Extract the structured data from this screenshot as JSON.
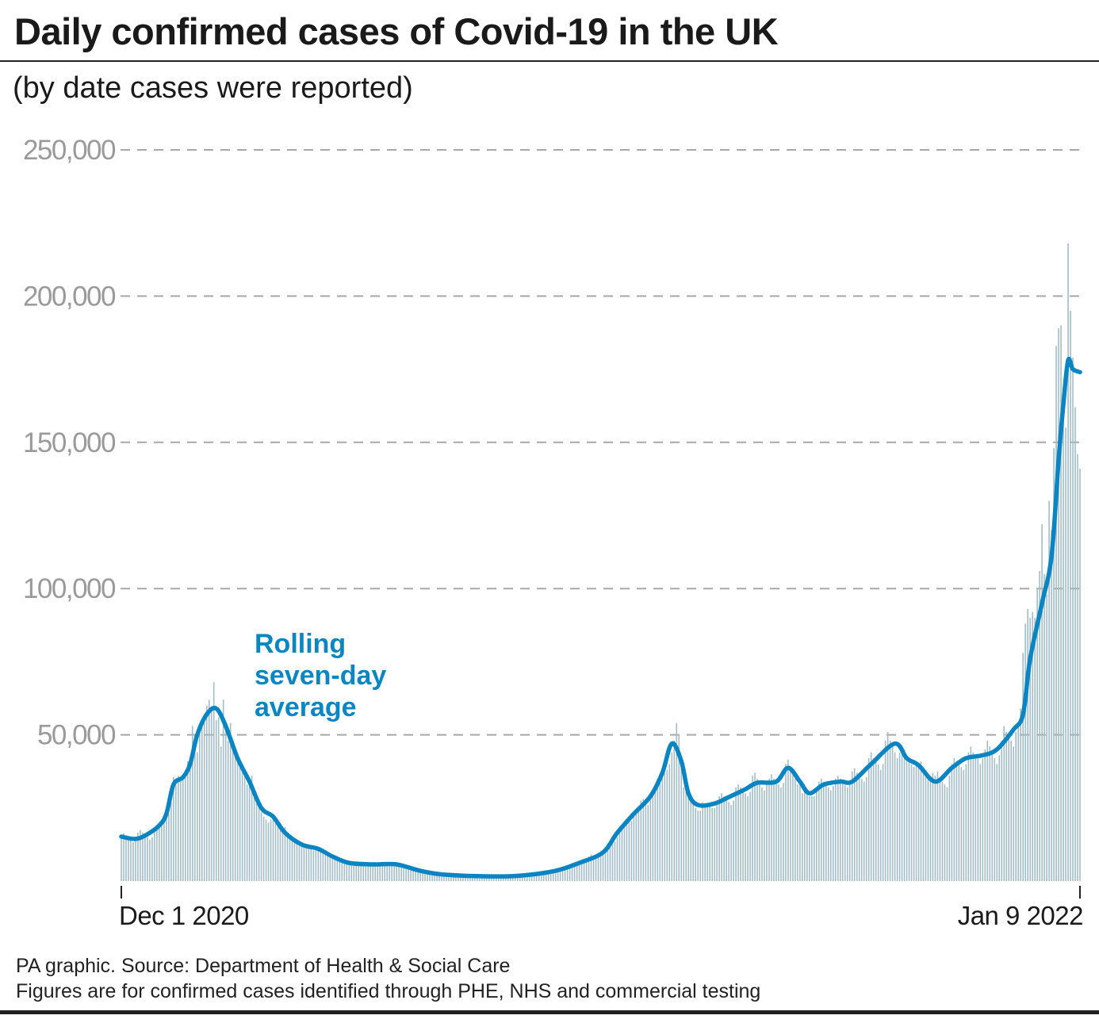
{
  "chart_data": {
    "type": "bar",
    "title": "Daily confirmed cases of Covid-19 in the UK",
    "subtitle": "(by date cases were reported)",
    "xlabel": "",
    "ylabel": "",
    "ylim": [
      0,
      250000
    ],
    "yticks": [
      50000,
      100000,
      150000,
      200000,
      250000
    ],
    "ytick_labels": [
      "50,000",
      "100,000",
      "150,000",
      "200,000",
      "250,000"
    ],
    "xtick_labels": [
      {
        "date": "2020-12-01",
        "label": "Dec 1 2020"
      },
      {
        "date": "2022-01-09",
        "label": "Jan 9  2022"
      }
    ],
    "grid": "horizontal dashed",
    "colors": {
      "bars": "#a3bcc6",
      "line": "#0a85c2",
      "grid": "#a8a8a8"
    },
    "daily_start_date": "2020-12-01",
    "daily_cases": [
      15500,
      16300,
      15600,
      14800,
      14100,
      13300,
      14100,
      16600,
      17400,
      16600,
      15800,
      15000,
      14200,
      15000,
      17000,
      18000,
      19500,
      20000,
      21000,
      21500,
      23000,
      27000,
      35500,
      33000,
      36000,
      35000,
      34500,
      38000,
      41000,
      39000,
      53000,
      50000,
      44000,
      53000,
      54000,
      57000,
      60000,
      62000,
      58000,
      68000,
      55000,
      56000,
      46000,
      62000,
      52000,
      48000,
      54000,
      46000,
      45000,
      42000,
      40000,
      38000,
      37000,
      33000,
      33000,
      36000,
      30000,
      28000,
      25500,
      23500,
      22000,
      21000,
      20000,
      21000,
      21500,
      20000,
      19000,
      18500,
      17500,
      18500,
      15500,
      15000,
      14500,
      13500,
      13000,
      12000,
      12500,
      12000,
      12500,
      11500,
      11000,
      10500,
      10500,
      11500,
      10000,
      9500,
      9200,
      8700,
      8500,
      8000,
      8300,
      7400,
      6900,
      6600,
      6400,
      6000,
      5800,
      6100,
      6100,
      6000,
      5900,
      5700,
      5500,
      5600,
      5800,
      6000,
      6100,
      5800,
      5600,
      5400,
      5300,
      5700,
      5900,
      6000,
      5800,
      5600,
      5500,
      5400,
      5600,
      4800,
      4500,
      4300,
      4100,
      3900,
      3800,
      4000,
      3400,
      3200,
      3000,
      2900,
      2800,
      2700,
      2900,
      2500,
      2400,
      2300,
      2100,
      2000,
      1900,
      2100,
      2200,
      2100,
      2000,
      1900,
      1900,
      1800,
      2000,
      2000,
      1900,
      1800,
      1700,
      1700,
      1600,
      1800,
      1800,
      1700,
      1600,
      1500,
      1500,
      1400,
      1600,
      1900,
      1900,
      1800,
      1700,
      1700,
      1700,
      1900,
      2100,
      2200,
      2000,
      2000,
      1900,
      1900,
      2100,
      2700,
      3000,
      2900,
      2800,
      2700,
      2600,
      2900,
      3700,
      4200,
      4300,
      4000,
      3900,
      3800,
      4300,
      5500,
      6200,
      6400,
      6000,
      5800,
      5700,
      6400,
      7600,
      8400,
      9100,
      8800,
      8500,
      8300,
      9000,
      10500,
      11500,
      13000,
      13500,
      14000,
      13500,
      15000,
      16500,
      18000,
      20000,
      21000,
      22000,
      20500,
      22000,
      23500,
      25000,
      27500,
      28000,
      27000,
      26000,
      28500,
      31000,
      32500,
      35000,
      36000,
      35500,
      37000,
      38000,
      40000,
      44000,
      48000,
      54000,
      50000,
      40000,
      32000,
      34000,
      30000,
      28000,
      27000,
      25000,
      24000,
      24000,
      27000,
      26500,
      26000,
      25500,
      25000,
      25000,
      27000,
      29000,
      30000,
      29000,
      28000,
      27000,
      26000,
      27500,
      32000,
      33000,
      32000,
      31000,
      30000,
      29000,
      30500,
      36000,
      37000,
      35000,
      34000,
      32000,
      31000,
      33000,
      35000,
      36500,
      35000,
      34000,
      33000,
      32000,
      33500,
      40000,
      41500,
      38500,
      37000,
      35000,
      33000,
      34000,
      30000,
      31000,
      30000,
      29000,
      29000,
      29000,
      32000,
      34000,
      35000,
      34000,
      33000,
      32000,
      31000,
      32500,
      35000,
      36000,
      35000,
      34000,
      33000,
      32000,
      33000,
      37500,
      38500,
      37000,
      36000,
      35000,
      34000,
      35500,
      42000,
      44000,
      42000,
      41000,
      40000,
      38000,
      40000,
      48000,
      51000,
      48000,
      46000,
      44000,
      42000,
      44000,
      44000,
      45000,
      43000,
      42000,
      40000,
      39000,
      41000,
      40000,
      41000,
      39000,
      38000,
      36000,
      35000,
      37000,
      36000,
      37500,
      35000,
      34000,
      33000,
      32000,
      36000,
      40000,
      42000,
      41000,
      40000,
      39000,
      38000,
      40000,
      44000,
      46000,
      44000,
      43000,
      42000,
      40000,
      42000,
      45000,
      48000,
      46000,
      44000,
      42000,
      40000,
      43000,
      48000,
      53000,
      51000,
      50000,
      48000,
      46000,
      51000,
      54000,
      59000,
      78000,
      88000,
      93000,
      90000,
      92000,
      90000,
      100000,
      106000,
      122000,
      105000,
      98000,
      130000,
      120000,
      148000,
      183000,
      189000,
      190000,
      162000,
      155000,
      218000,
      195000,
      179000,
      162000,
      146000,
      141000
    ],
    "rolling_average": {
      "name": "Rolling seven-day average",
      "points": [
        [
          "2020-12-01",
          15200
        ],
        [
          "2020-12-07",
          14400
        ],
        [
          "2020-12-12",
          16000
        ],
        [
          "2020-12-17",
          19000
        ],
        [
          "2020-12-20",
          23000
        ],
        [
          "2020-12-23",
          33000
        ],
        [
          "2020-12-27",
          35500
        ],
        [
          "2020-12-30",
          40000
        ],
        [
          "2021-01-02",
          50000
        ],
        [
          "2021-01-06",
          57000
        ],
        [
          "2021-01-10",
          59000
        ],
        [
          "2021-01-14",
          53000
        ],
        [
          "2021-01-19",
          42000
        ],
        [
          "2021-01-24",
          34000
        ],
        [
          "2021-01-29",
          25000
        ],
        [
          "2021-02-03",
          22000
        ],
        [
          "2021-02-08",
          16500
        ],
        [
          "2021-02-15",
          12500
        ],
        [
          "2021-02-22",
          11000
        ],
        [
          "2021-02-28",
          8400
        ],
        [
          "2021-03-07",
          6200
        ],
        [
          "2021-03-17",
          5700
        ],
        [
          "2021-03-27",
          5700
        ],
        [
          "2021-04-06",
          3500
        ],
        [
          "2021-04-16",
          2200
        ],
        [
          "2021-05-06",
          1600
        ],
        [
          "2021-05-19",
          1900
        ],
        [
          "2021-06-02",
          3500
        ],
        [
          "2021-06-12",
          6200
        ],
        [
          "2021-06-22",
          9800
        ],
        [
          "2021-06-28",
          16500
        ],
        [
          "2021-07-05",
          23000
        ],
        [
          "2021-07-12",
          29000
        ],
        [
          "2021-07-17",
          37000
        ],
        [
          "2021-07-21",
          47000
        ],
        [
          "2021-07-25",
          41000
        ],
        [
          "2021-07-28",
          30000
        ],
        [
          "2021-08-01",
          26000
        ],
        [
          "2021-08-08",
          26500
        ],
        [
          "2021-08-14",
          28700
        ],
        [
          "2021-08-21",
          31400
        ],
        [
          "2021-08-26",
          33600
        ],
        [
          "2021-09-03",
          34000
        ],
        [
          "2021-09-08",
          38700
        ],
        [
          "2021-09-13",
          34000
        ],
        [
          "2021-09-17",
          30000
        ],
        [
          "2021-09-23",
          33000
        ],
        [
          "2021-09-30",
          34000
        ],
        [
          "2021-10-05",
          34000
        ],
        [
          "2021-10-13",
          40000
        ],
        [
          "2021-10-23",
          47000
        ],
        [
          "2021-10-28",
          42000
        ],
        [
          "2021-11-02",
          39600
        ],
        [
          "2021-11-09",
          34000
        ],
        [
          "2021-11-16",
          38700
        ],
        [
          "2021-11-22",
          42000
        ],
        [
          "2021-11-29",
          43000
        ],
        [
          "2021-12-05",
          45000
        ],
        [
          "2021-12-12",
          51800
        ],
        [
          "2021-12-16",
          57000
        ],
        [
          "2021-12-19",
          76000
        ],
        [
          "2021-12-24",
          95000
        ],
        [
          "2021-12-28",
          111000
        ],
        [
          "2021-12-31",
          144000
        ],
        [
          "2022-01-02",
          163000
        ],
        [
          "2022-01-04",
          178000
        ],
        [
          "2022-01-06",
          175000
        ],
        [
          "2022-01-09",
          174000
        ]
      ]
    }
  },
  "footer": {
    "source": "PA graphic. Source: Department of Health & Social Care",
    "note": "Figures are for confirmed cases identified through PHE, NHS and commercial testing"
  }
}
